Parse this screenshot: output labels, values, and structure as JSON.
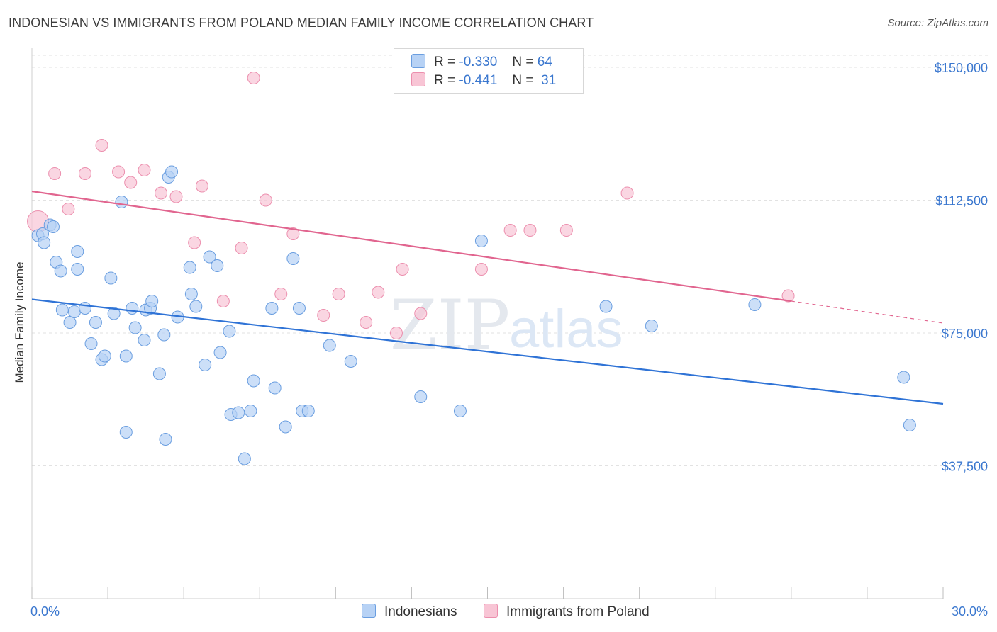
{
  "title": "INDONESIAN VS IMMIGRANTS FROM POLAND MEDIAN FAMILY INCOME CORRELATION CHART",
  "source": "Source: ZipAtlas.com",
  "watermark": {
    "zip": "ZIP",
    "atlas": "atlas"
  },
  "legend": {
    "rows": [
      {
        "r_label": "R =",
        "r_value": "-0.330",
        "n_label": "N =",
        "n_value": "64"
      },
      {
        "r_label": "R =",
        "r_value": "-0.441",
        "n_label": "N =",
        "n_value": "31"
      }
    ]
  },
  "chart_data": {
    "type": "scatter",
    "title": "INDONESIAN VS IMMIGRANTS FROM POLAND MEDIAN FAMILY INCOME CORRELATION CHART",
    "xlabel": "",
    "ylabel": "Median Family Income",
    "xlim": [
      0,
      30
    ],
    "ylim": [
      0,
      157000
    ],
    "x_tick_labels": [
      "0.0%",
      "30.0%"
    ],
    "y_ticks": [
      37500,
      75000,
      112500,
      150000
    ],
    "y_tick_labels": [
      "$37,500",
      "$75,000",
      "$112,500",
      "$150,000"
    ],
    "colors": {
      "indonesians_fill": "#b7d2f5",
      "indonesians_stroke": "#6a9ee0",
      "indonesians_line": "#2f73d6",
      "poland_fill": "#f8c5d5",
      "poland_stroke": "#ec8fae",
      "poland_line": "#e1658f",
      "grid": "#e2e2e2",
      "axis_label": "#3a77cf"
    },
    "series": [
      {
        "name": "Indonesians",
        "r": -0.33,
        "n": 64,
        "trend": {
          "x": [
            0.0,
            30.0
          ],
          "y": [
            84500,
            55000
          ]
        },
        "points": [
          [
            0.2,
            102500
          ],
          [
            0.35,
            103000
          ],
          [
            0.4,
            100500
          ],
          [
            0.6,
            105500
          ],
          [
            0.7,
            105000
          ],
          [
            0.8,
            95000
          ],
          [
            0.95,
            92500
          ],
          [
            1.0,
            81500
          ],
          [
            1.25,
            78000
          ],
          [
            1.4,
            81000
          ],
          [
            1.5,
            93000
          ],
          [
            1.5,
            98000
          ],
          [
            1.75,
            82000
          ],
          [
            1.95,
            72000
          ],
          [
            2.1,
            78000
          ],
          [
            2.3,
            67500
          ],
          [
            2.4,
            68500
          ],
          [
            2.6,
            90500
          ],
          [
            2.7,
            80500
          ],
          [
            2.95,
            112000
          ],
          [
            3.1,
            68500
          ],
          [
            3.1,
            47000
          ],
          [
            3.3,
            82000
          ],
          [
            3.4,
            76500
          ],
          [
            3.7,
            73000
          ],
          [
            3.75,
            81500
          ],
          [
            3.9,
            82000
          ],
          [
            3.95,
            84000
          ],
          [
            4.2,
            63500
          ],
          [
            4.35,
            74500
          ],
          [
            4.4,
            45000
          ],
          [
            4.5,
            119000
          ],
          [
            4.6,
            120500
          ],
          [
            4.8,
            79500
          ],
          [
            5.2,
            93500
          ],
          [
            5.25,
            86000
          ],
          [
            5.4,
            82500
          ],
          [
            5.7,
            66000
          ],
          [
            5.85,
            96500
          ],
          [
            6.1,
            94000
          ],
          [
            6.2,
            69500
          ],
          [
            6.5,
            75500
          ],
          [
            6.55,
            52000
          ],
          [
            6.8,
            52500
          ],
          [
            7.0,
            39500
          ],
          [
            7.2,
            53000
          ],
          [
            7.3,
            61500
          ],
          [
            7.9,
            82000
          ],
          [
            8.0,
            59500
          ],
          [
            8.35,
            48500
          ],
          [
            8.6,
            96000
          ],
          [
            8.8,
            82000
          ],
          [
            8.9,
            53000
          ],
          [
            9.1,
            53000
          ],
          [
            9.8,
            71500
          ],
          [
            10.5,
            67000
          ],
          [
            12.8,
            57000
          ],
          [
            14.1,
            53000
          ],
          [
            14.8,
            101000
          ],
          [
            18.9,
            82500
          ],
          [
            20.4,
            77000
          ],
          [
            23.8,
            83000
          ],
          [
            28.7,
            62500
          ],
          [
            28.9,
            49000
          ]
        ]
      },
      {
        "name": "Immigrants from Poland",
        "r": -0.441,
        "n": 31,
        "trend": {
          "x": [
            0.0,
            25.0
          ],
          "y": [
            115000,
            84000
          ]
        },
        "trend_extension": {
          "x": [
            25.0,
            30.0
          ],
          "y": [
            84000,
            77800
          ]
        },
        "points": [
          [
            0.2,
            106500
          ],
          [
            0.75,
            120000
          ],
          [
            1.2,
            110000
          ],
          [
            1.75,
            120000
          ],
          [
            2.3,
            128000
          ],
          [
            2.85,
            120500
          ],
          [
            3.25,
            117500
          ],
          [
            3.7,
            121000
          ],
          [
            4.25,
            114500
          ],
          [
            4.75,
            113500
          ],
          [
            5.35,
            100500
          ],
          [
            5.6,
            116500
          ],
          [
            6.3,
            84000
          ],
          [
            6.9,
            99000
          ],
          [
            7.3,
            147000
          ],
          [
            7.7,
            112500
          ],
          [
            8.2,
            86000
          ],
          [
            8.6,
            103000
          ],
          [
            9.6,
            80000
          ],
          [
            10.1,
            86000
          ],
          [
            11.0,
            78000
          ],
          [
            11.4,
            86500
          ],
          [
            12.0,
            75000
          ],
          [
            12.2,
            93000
          ],
          [
            12.8,
            80500
          ],
          [
            14.8,
            93000
          ],
          [
            15.75,
            104000
          ],
          [
            16.4,
            104000
          ],
          [
            17.6,
            104000
          ],
          [
            19.6,
            114500
          ],
          [
            24.9,
            85500
          ]
        ]
      }
    ]
  },
  "bottom_legend": [
    "Indonesians",
    "Immigrants from Poland"
  ]
}
